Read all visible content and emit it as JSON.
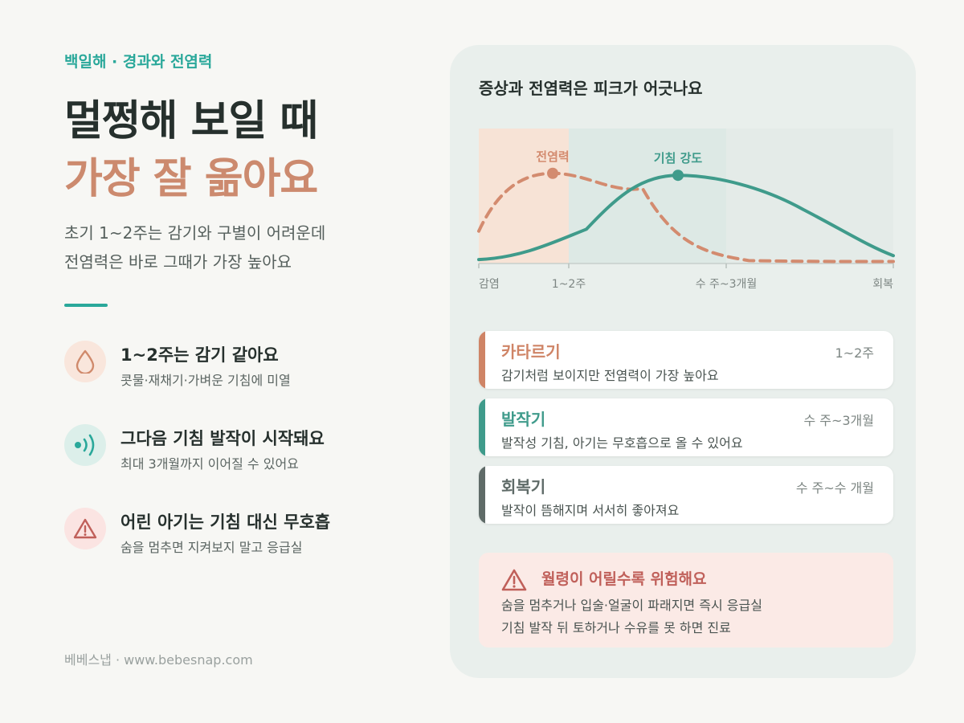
{
  "kicker": "백일해 · 경과와 전염력",
  "title_line1": "멀쩡해 보일 때",
  "title_line2": "가장 잘 옮아요",
  "lead_line1": "초기 1~2주는 감기와 구별이 어려운데",
  "lead_line2": "전염력은 바로 그때가 가장 높아요",
  "features": [
    {
      "icon": "droplet-icon",
      "title": "1~2주는 감기 같아요",
      "subtitle": "콧물·재채기·가벼운 기침에 미열"
    },
    {
      "icon": "sound-wave-icon",
      "title": "그다음 기침 발작이 시작돼요",
      "subtitle": "최대 3개월까지 이어질 수 있어요"
    },
    {
      "icon": "warning-icon",
      "title": "어린 아기는 기침 대신 무호흡",
      "subtitle": "숨을 멈추면 지켜보지 말고 응급실"
    }
  ],
  "footer": "베베스냅 · www.bebesnap.com",
  "panel_title": "증상과 전염력은 피크가 어긋나요",
  "chart_data": {
    "type": "line",
    "x_ticks": [
      "감염",
      "1~2주",
      "수 주~3개월",
      "회복"
    ],
    "series": [
      {
        "name": "전염력",
        "style": "dashed",
        "color": "#d38b6f",
        "peak": "1~2주",
        "values": [
          0.33,
          0.92,
          0.6,
          0.1,
          0.03,
          0.02
        ]
      },
      {
        "name": "기침 강도",
        "style": "solid",
        "color": "#3f9b8b",
        "peak": "수 주~3개월",
        "values": [
          0.04,
          0.35,
          0.9,
          0.78,
          0.42,
          0.08
        ]
      }
    ],
    "shaded_regions": [
      "감염 ~ 1~2주",
      "1~2주 ~ 수 주~3개월"
    ],
    "grid": false,
    "legend": "inline labels at peaks"
  },
  "stages": [
    {
      "name": "카타르기",
      "period": "1~2주",
      "desc": "감기처럼 보이지만 전염력이 가장 높아요",
      "color": "#cf8466"
    },
    {
      "name": "발작기",
      "period": "수 주~3개월",
      "desc": "발작성 기침, 아기는 무호흡으로 올 수 있어요",
      "color": "#3f9b8b"
    },
    {
      "name": "회복기",
      "period": "수 주~수 개월",
      "desc": "발작이 뜸해지며 서서히 좋아져요",
      "color": "#5f6b68"
    }
  ],
  "warning": {
    "title": "월령이 어릴수록 위험해요",
    "line1": "숨을 멈추거나 입술·얼굴이 파래지면 즉시 응급실",
    "line2": "기침 발작 뒤 토하거나 수유를 못 하면 진료"
  },
  "colors": {
    "teal": "#2aa89a",
    "coral": "#cc8a6e",
    "warn_red": "#c0605a"
  }
}
